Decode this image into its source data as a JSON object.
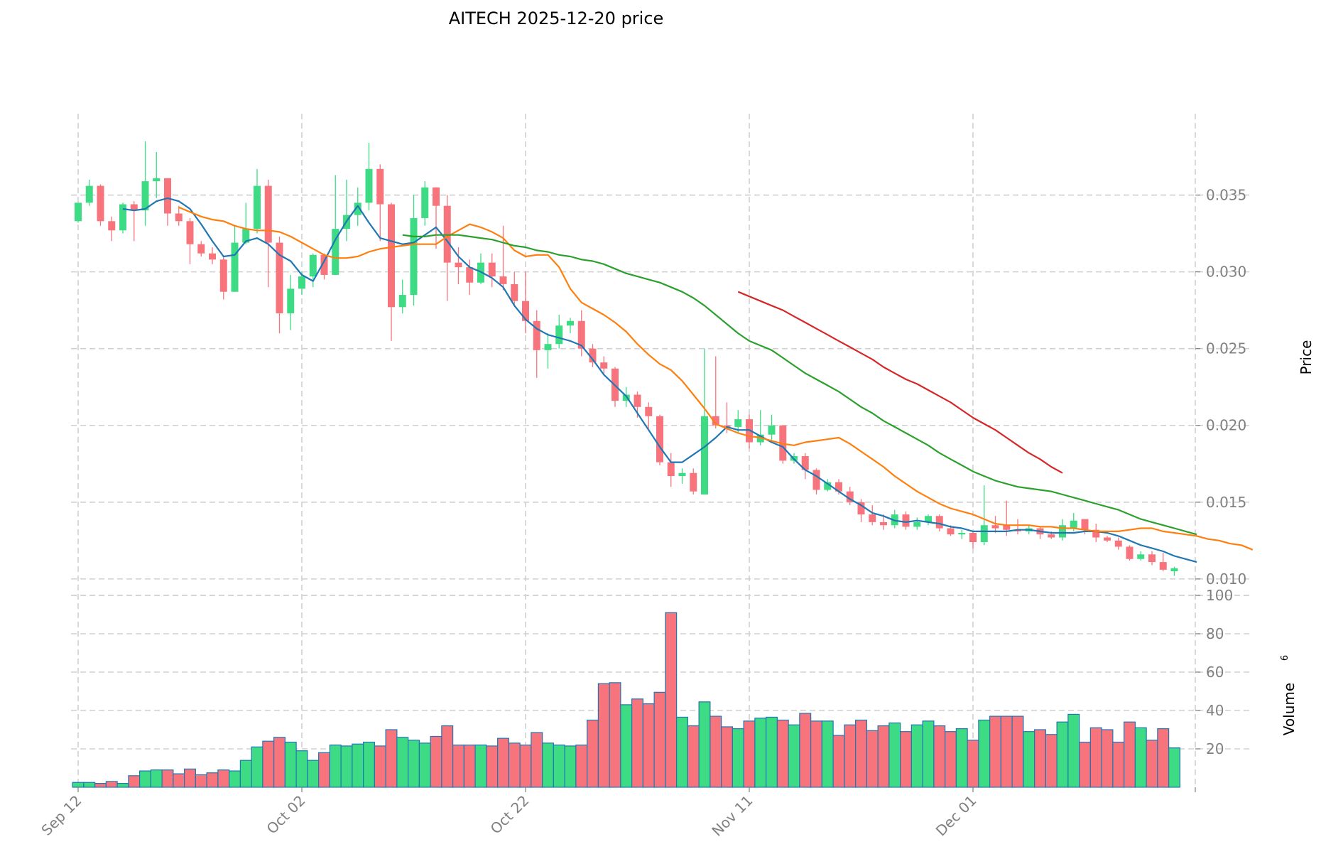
{
  "chart_data": {
    "type": "candlestick",
    "title": "AITECH  2025-12-20  price",
    "price_panel": {
      "ylabel": "Price",
      "ylim": [
        0.0093,
        0.0403
      ],
      "yticks": [
        0.01,
        0.015,
        0.02,
        0.025,
        0.03,
        0.035
      ],
      "ytick_labels": [
        "0.010",
        "0.015",
        "0.020",
        "0.025",
        "0.030",
        "0.035"
      ]
    },
    "volume_panel": {
      "ylabel": "Volume",
      "ylabel_exponent": "6",
      "ylim": [
        0,
        100
      ],
      "yticks": [
        20,
        40,
        60,
        80,
        100
      ],
      "ytick_labels": [
        "20",
        "40",
        "60",
        "80",
        "100"
      ]
    },
    "x_axis": {
      "date_range": [
        "2025-09-12",
        "2025-12-20"
      ],
      "tick_days": [
        0,
        20,
        40,
        60,
        80
      ],
      "tick_labels": [
        "Sep 12",
        "Oct 02",
        "Oct 22",
        "Nov 11",
        "Dec 01"
      ]
    },
    "colors": {
      "up": "#3ddc84",
      "down": "#f8747d",
      "volume_edge": "#1f77b4",
      "ma_short": "#1f77b4",
      "ma_medium": "#ff7f0e",
      "ma_long": "#2ca02c",
      "ma_longest": "#d62728",
      "grid": "#d0d0d0"
    },
    "ohlc": [
      [
        0.0333,
        0.0345,
        0.0332,
        0.0345
      ],
      [
        0.0345,
        0.036,
        0.0343,
        0.0356
      ],
      [
        0.0356,
        0.0357,
        0.033,
        0.0333
      ],
      [
        0.0333,
        0.0336,
        0.032,
        0.0327
      ],
      [
        0.0327,
        0.0345,
        0.0325,
        0.0344
      ],
      [
        0.0344,
        0.0346,
        0.032,
        0.034
      ],
      [
        0.034,
        0.0385,
        0.033,
        0.0359
      ],
      [
        0.0359,
        0.0378,
        0.0348,
        0.0361
      ],
      [
        0.0361,
        0.0361,
        0.033,
        0.0338
      ],
      [
        0.0338,
        0.0343,
        0.033,
        0.0333
      ],
      [
        0.0333,
        0.0335,
        0.0305,
        0.0318
      ],
      [
        0.0318,
        0.032,
        0.031,
        0.0312
      ],
      [
        0.0312,
        0.0316,
        0.0305,
        0.0308
      ],
      [
        0.0308,
        0.031,
        0.0282,
        0.0287
      ],
      [
        0.0287,
        0.033,
        0.0287,
        0.0319
      ],
      [
        0.0319,
        0.0345,
        0.0318,
        0.0328
      ],
      [
        0.0328,
        0.0367,
        0.0325,
        0.0356
      ],
      [
        0.0356,
        0.036,
        0.029,
        0.0319
      ],
      [
        0.0319,
        0.0323,
        0.026,
        0.0273
      ],
      [
        0.0273,
        0.0298,
        0.0262,
        0.0289
      ],
      [
        0.0289,
        0.03,
        0.0285,
        0.0297
      ],
      [
        0.0297,
        0.0312,
        0.029,
        0.0311
      ],
      [
        0.0311,
        0.0312,
        0.0295,
        0.0298
      ],
      [
        0.0298,
        0.0363,
        0.0298,
        0.0328
      ],
      [
        0.0328,
        0.036,
        0.032,
        0.0337
      ],
      [
        0.0337,
        0.0355,
        0.033,
        0.0345
      ],
      [
        0.0345,
        0.0384,
        0.034,
        0.0367
      ],
      [
        0.0367,
        0.037,
        0.032,
        0.0344
      ],
      [
        0.0344,
        0.0345,
        0.0255,
        0.0277
      ],
      [
        0.0277,
        0.0295,
        0.0273,
        0.0285
      ],
      [
        0.0285,
        0.035,
        0.0278,
        0.0335
      ],
      [
        0.0335,
        0.0359,
        0.033,
        0.0355
      ],
      [
        0.0355,
        0.0355,
        0.0315,
        0.0343
      ],
      [
        0.0343,
        0.035,
        0.0281,
        0.0306
      ],
      [
        0.0306,
        0.0316,
        0.0292,
        0.0303
      ],
      [
        0.0303,
        0.0308,
        0.0285,
        0.0293
      ],
      [
        0.0293,
        0.0312,
        0.0292,
        0.0306
      ],
      [
        0.0306,
        0.0312,
        0.029,
        0.0297
      ],
      [
        0.0297,
        0.033,
        0.0288,
        0.0292
      ],
      [
        0.0292,
        0.03,
        0.0278,
        0.0281
      ],
      [
        0.0281,
        0.03,
        0.026,
        0.0268
      ],
      [
        0.0268,
        0.0275,
        0.0231,
        0.0249
      ],
      [
        0.0249,
        0.026,
        0.0237,
        0.0253
      ],
      [
        0.0253,
        0.0272,
        0.025,
        0.0265
      ],
      [
        0.0265,
        0.027,
        0.026,
        0.0268
      ],
      [
        0.0268,
        0.0275,
        0.0245,
        0.025
      ],
      [
        0.025,
        0.0253,
        0.0238,
        0.0241
      ],
      [
        0.0241,
        0.0245,
        0.0234,
        0.0237
      ],
      [
        0.0237,
        0.0238,
        0.0212,
        0.0216
      ],
      [
        0.0216,
        0.0225,
        0.0212,
        0.022
      ],
      [
        0.022,
        0.0222,
        0.0205,
        0.0212
      ],
      [
        0.0212,
        0.0215,
        0.0198,
        0.0206
      ],
      [
        0.0206,
        0.0207,
        0.0174,
        0.0176
      ],
      [
        0.0176,
        0.0182,
        0.016,
        0.0167
      ],
      [
        0.0167,
        0.0172,
        0.0162,
        0.0169
      ],
      [
        0.0169,
        0.0172,
        0.0155,
        0.0157
      ],
      [
        0.0155,
        0.025,
        0.0155,
        0.0206
      ],
      [
        0.0206,
        0.0245,
        0.0198,
        0.02
      ],
      [
        0.02,
        0.0215,
        0.0195,
        0.0199
      ],
      [
        0.0199,
        0.021,
        0.0195,
        0.0204
      ],
      [
        0.0204,
        0.0207,
        0.0185,
        0.0189
      ],
      [
        0.0189,
        0.021,
        0.0187,
        0.0194
      ],
      [
        0.0194,
        0.0207,
        0.019,
        0.02
      ],
      [
        0.02,
        0.02,
        0.0175,
        0.0177
      ],
      [
        0.0177,
        0.0182,
        0.0175,
        0.018
      ],
      [
        0.018,
        0.0182,
        0.0165,
        0.0171
      ],
      [
        0.0171,
        0.0172,
        0.0155,
        0.0158
      ],
      [
        0.0158,
        0.0165,
        0.0157,
        0.0163
      ],
      [
        0.0163,
        0.0165,
        0.0155,
        0.0157
      ],
      [
        0.0157,
        0.016,
        0.0148,
        0.015
      ],
      [
        0.015,
        0.0152,
        0.0137,
        0.0142
      ],
      [
        0.0142,
        0.0148,
        0.0135,
        0.0137
      ],
      [
        0.0137,
        0.0142,
        0.0132,
        0.0135
      ],
      [
        0.0135,
        0.0145,
        0.0133,
        0.0142
      ],
      [
        0.0142,
        0.0144,
        0.0132,
        0.0134
      ],
      [
        0.0134,
        0.014,
        0.0132,
        0.0137
      ],
      [
        0.0137,
        0.0142,
        0.0135,
        0.0141
      ],
      [
        0.0141,
        0.0142,
        0.0131,
        0.0133
      ],
      [
        0.0133,
        0.0135,
        0.0128,
        0.0129
      ],
      [
        0.0129,
        0.0132,
        0.0126,
        0.013
      ],
      [
        0.013,
        0.0131,
        0.012,
        0.0124
      ],
      [
        0.0124,
        0.0161,
        0.0122,
        0.0135
      ],
      [
        0.0135,
        0.0141,
        0.013,
        0.0133
      ],
      [
        0.0135,
        0.0151,
        0.0128,
        0.0132
      ],
      [
        0.0132,
        0.0139,
        0.0129,
        0.0131
      ],
      [
        0.0131,
        0.0135,
        0.0129,
        0.0133
      ],
      [
        0.0133,
        0.0134,
        0.0126,
        0.0129
      ],
      [
        0.0129,
        0.0131,
        0.0126,
        0.0127
      ],
      [
        0.0127,
        0.0139,
        0.0125,
        0.0135
      ],
      [
        0.0133,
        0.0143,
        0.0131,
        0.0138
      ],
      [
        0.0139,
        0.0139,
        0.0129,
        0.0132
      ],
      [
        0.0132,
        0.0136,
        0.0124,
        0.0127
      ],
      [
        0.0127,
        0.0128,
        0.0124,
        0.0125
      ],
      [
        0.0125,
        0.0127,
        0.0119,
        0.0121
      ],
      [
        0.0121,
        0.0122,
        0.0112,
        0.0113
      ],
      [
        0.0113,
        0.0118,
        0.0112,
        0.0116
      ],
      [
        0.0116,
        0.0118,
        0.0109,
        0.0111
      ],
      [
        0.0111,
        0.0117,
        0.0105,
        0.0106
      ],
      [
        0.0105,
        0.0108,
        0.0102,
        0.0107
      ]
    ],
    "volume": [
      2.5,
      2.5,
      2,
      3,
      2,
      6,
      8.5,
      9,
      9,
      7,
      9.5,
      6.5,
      7.5,
      9,
      8.5,
      14,
      21,
      24,
      26,
      23.5,
      19,
      14,
      18,
      22,
      21.5,
      22.5,
      23.5,
      21.5,
      30,
      26,
      24.5,
      23,
      26.5,
      32,
      22,
      22,
      22,
      21.5,
      25.5,
      23,
      22,
      28.5,
      23,
      22,
      21.5,
      22,
      35,
      54,
      54.5,
      43,
      46,
      43.5,
      49.5,
      91,
      36.5,
      32,
      44.5,
      37,
      31.5,
      30.5,
      34.5,
      36,
      36.5,
      35,
      32.5,
      38.5,
      34.5,
      34.5,
      27,
      32.5,
      35,
      29.5,
      32,
      33.5,
      29,
      32.5,
      34.5,
      32,
      29,
      30.5,
      24.5,
      35,
      37,
      37,
      37,
      29,
      30,
      27.5,
      34,
      38,
      23.5,
      31,
      30,
      23.5,
      34,
      31,
      24.5,
      30.5,
      20.5
    ],
    "ma_series": [
      {
        "name": "MA7",
        "color": "#1f77b4",
        "start": 4,
        "values": [
          0.0341,
          0.034,
          0.0341,
          0.0346,
          0.0348,
          0.0346,
          0.0341,
          0.0331,
          0.032,
          0.031,
          0.0311,
          0.032,
          0.0322,
          0.0318,
          0.0311,
          0.0307,
          0.0298,
          0.0294,
          0.0307,
          0.0321,
          0.0333,
          0.0343,
          0.0332,
          0.0322,
          0.032,
          0.0318,
          0.0319,
          0.0324,
          0.0329,
          0.032,
          0.031,
          0.0303,
          0.03,
          0.0296,
          0.029,
          0.0278,
          0.0269,
          0.0263,
          0.0259,
          0.0257,
          0.0255,
          0.0252,
          0.0243,
          0.0233,
          0.0226,
          0.0219,
          0.0208,
          0.0197,
          0.0186,
          0.0176,
          0.0176,
          0.0181,
          0.0186,
          0.0192,
          0.0199,
          0.0197,
          0.0197,
          0.0193,
          0.0189,
          0.0186,
          0.0178,
          0.0171,
          0.0167,
          0.0162,
          0.0157,
          0.0152,
          0.0148,
          0.0143,
          0.0141,
          0.0138,
          0.0137,
          0.0138,
          0.0137,
          0.0136,
          0.0134,
          0.0133,
          0.0131,
          0.0131,
          0.0131,
          0.0131,
          0.0132,
          0.0132,
          0.0131,
          0.013,
          0.013,
          0.013,
          0.0131,
          0.0131,
          0.013,
          0.0128,
          0.0125,
          0.0122,
          0.012,
          0.0118,
          0.0115,
          0.0113,
          0.0111
        ]
      },
      {
        "name": "MA14",
        "color": "#ff7f0e",
        "start": 9,
        "values": [
          0.0342,
          0.0339,
          0.0336,
          0.0334,
          0.0333,
          0.033,
          0.0328,
          0.0327,
          0.0327,
          0.0326,
          0.0323,
          0.0319,
          0.0315,
          0.0311,
          0.0309,
          0.0309,
          0.031,
          0.0313,
          0.0315,
          0.0316,
          0.0317,
          0.0318,
          0.0318,
          0.0318,
          0.0323,
          0.0327,
          0.0331,
          0.0329,
          0.0326,
          0.0322,
          0.0314,
          0.031,
          0.0311,
          0.0311,
          0.0303,
          0.0289,
          0.028,
          0.0276,
          0.0272,
          0.0267,
          0.0261,
          0.0253,
          0.0246,
          0.024,
          0.0236,
          0.0229,
          0.022,
          0.0211,
          0.0201,
          0.0198,
          0.0195,
          0.0193,
          0.0192,
          0.019,
          0.0188,
          0.0187,
          0.0189,
          0.019,
          0.0191,
          0.0192,
          0.0188,
          0.0183,
          0.0178,
          0.0173,
          0.0167,
          0.0162,
          0.0157,
          0.0153,
          0.0149,
          0.0146,
          0.0144,
          0.0142,
          0.0139,
          0.0136,
          0.0135,
          0.0135,
          0.0135,
          0.0134,
          0.0134,
          0.0133,
          0.0133,
          0.0132,
          0.0131,
          0.0131,
          0.0131,
          0.0132,
          0.0133,
          0.0133,
          0.0131,
          0.013,
          0.0129,
          0.0128,
          0.0126,
          0.0125,
          0.0123,
          0.0122,
          0.0119
        ]
      },
      {
        "name": "MA30",
        "color": "#2ca02c",
        "start": 29,
        "values": [
          0.0324,
          0.0323,
          0.0323,
          0.0324,
          0.0324,
          0.0324,
          0.0323,
          0.0322,
          0.0321,
          0.0319,
          0.0317,
          0.0316,
          0.0314,
          0.0313,
          0.0311,
          0.031,
          0.0308,
          0.0307,
          0.0305,
          0.0302,
          0.0299,
          0.0297,
          0.0295,
          0.0293,
          0.029,
          0.0287,
          0.0283,
          0.0278,
          0.0272,
          0.0266,
          0.026,
          0.0255,
          0.0252,
          0.0249,
          0.0244,
          0.0239,
          0.0234,
          0.023,
          0.0226,
          0.0222,
          0.0217,
          0.0212,
          0.0208,
          0.0203,
          0.0199,
          0.0195,
          0.0191,
          0.0187,
          0.0182,
          0.0178,
          0.0174,
          0.017,
          0.0167,
          0.0164,
          0.0162,
          0.016,
          0.0159,
          0.0158,
          0.0157,
          0.0155,
          0.0153,
          0.0151,
          0.0149,
          0.0147,
          0.0145,
          0.0142,
          0.0139,
          0.0137,
          0.0135,
          0.0133,
          0.0131,
          0.0129
        ]
      },
      {
        "name": "MA60",
        "color": "#d62728",
        "start": 59,
        "values": [
          0.0287,
          0.0284,
          0.0281,
          0.0278,
          0.0275,
          0.0271,
          0.0267,
          0.0263,
          0.0259,
          0.0255,
          0.0251,
          0.0247,
          0.0243,
          0.0238,
          0.0234,
          0.023,
          0.0227,
          0.0223,
          0.0219,
          0.0215,
          0.021,
          0.0205,
          0.0201,
          0.0197,
          0.0192,
          0.0187,
          0.0182,
          0.0178,
          0.0173,
          0.0169
        ]
      }
    ]
  }
}
